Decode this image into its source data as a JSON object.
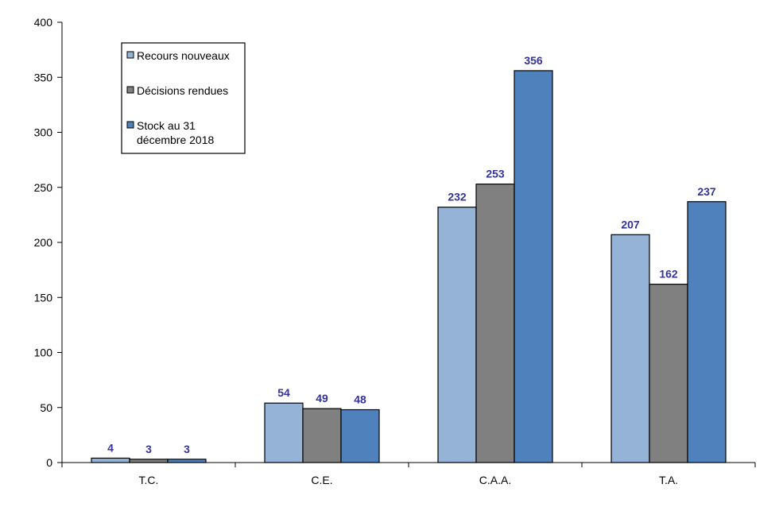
{
  "chart_data": {
    "type": "bar",
    "categories": [
      "T.C.",
      "C.E.",
      "C.A.A.",
      "T.A."
    ],
    "series": [
      {
        "name": "Recours nouveaux",
        "values": [
          4,
          54,
          232,
          207
        ],
        "color": "#95b3d7"
      },
      {
        "name": "Décisions rendues",
        "values": [
          3,
          49,
          253,
          162
        ],
        "color": "#808080"
      },
      {
        "name": "Stock au 31 décembre 2018",
        "name_lines": [
          "Stock au 31",
          "décembre 2018"
        ],
        "values": [
          3,
          48,
          356,
          237
        ],
        "color": "#4f81bd"
      }
    ],
    "y_ticks": [
      "0",
      "50",
      "100",
      "150",
      "200",
      "250",
      "300",
      "350",
      "400"
    ],
    "ylim": [
      0,
      400
    ],
    "grid": false,
    "legend_position": "top-left",
    "data_label_color": "#333399",
    "bar_outline_color": "#000000"
  }
}
